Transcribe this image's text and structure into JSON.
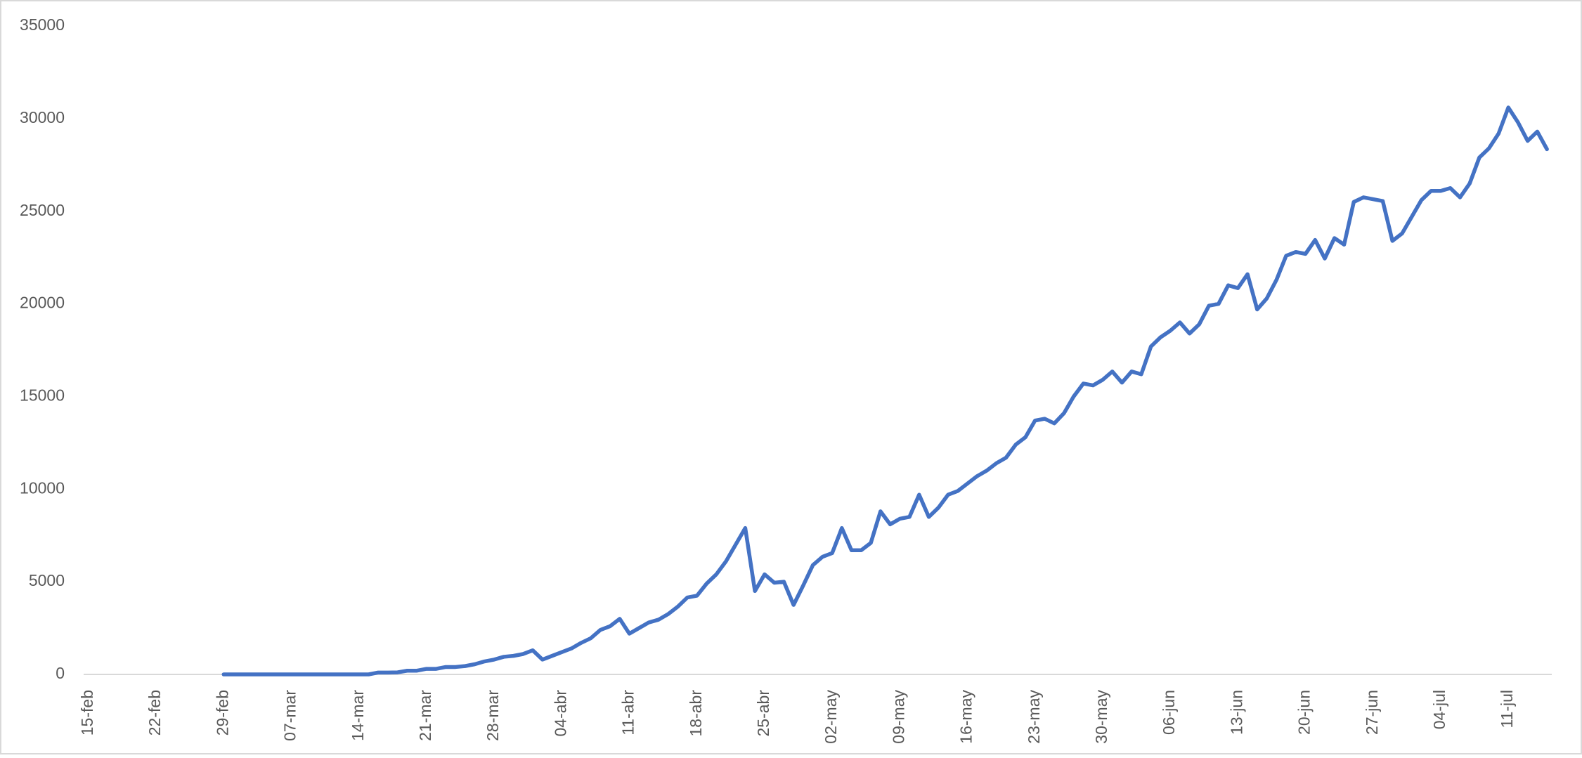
{
  "chart_data": {
    "type": "line",
    "categories": [
      "15-feb",
      null,
      null,
      null,
      null,
      null,
      null,
      "22-feb",
      null,
      null,
      null,
      null,
      null,
      null,
      "29-feb",
      null,
      null,
      null,
      null,
      null,
      null,
      "07-mar",
      null,
      null,
      null,
      null,
      null,
      null,
      "14-mar",
      null,
      null,
      null,
      null,
      null,
      null,
      "21-mar",
      null,
      null,
      null,
      null,
      null,
      null,
      "28-mar",
      null,
      null,
      null,
      null,
      null,
      null,
      "04-abr",
      null,
      null,
      null,
      null,
      null,
      null,
      "11-abr",
      null,
      null,
      null,
      null,
      null,
      null,
      "18-abr",
      null,
      null,
      null,
      null,
      null,
      null,
      "25-abr",
      null,
      null,
      null,
      null,
      null,
      null,
      "02-may",
      null,
      null,
      null,
      null,
      null,
      null,
      "09-may",
      null,
      null,
      null,
      null,
      null,
      null,
      "16-may",
      null,
      null,
      null,
      null,
      null,
      null,
      "23-may",
      null,
      null,
      null,
      null,
      null,
      null,
      "30-may",
      null,
      null,
      null,
      null,
      null,
      null,
      "06-jun",
      null,
      null,
      null,
      null,
      null,
      null,
      "13-jun",
      null,
      null,
      null,
      null,
      null,
      null,
      "20-jun",
      null,
      null,
      null,
      null,
      null,
      null,
      "27-jun",
      null,
      null,
      null,
      null,
      null,
      null,
      "04-jul",
      null,
      null,
      null,
      null,
      null,
      null,
      "11-jul",
      null,
      null,
      null,
      null
    ],
    "values": [
      null,
      null,
      null,
      null,
      null,
      null,
      null,
      null,
      null,
      null,
      null,
      null,
      null,
      null,
      0,
      0,
      0,
      0,
      0,
      0,
      0,
      0,
      0,
      0,
      0,
      0,
      0,
      0,
      0,
      0,
      100,
      100,
      110,
      200,
      200,
      300,
      300,
      400,
      400,
      450,
      550,
      700,
      800,
      950,
      1000,
      1100,
      1300,
      800,
      1000,
      1200,
      1400,
      1700,
      1950,
      2400,
      2600,
      3000,
      2200,
      2500,
      2800,
      2950,
      3250,
      3650,
      4150,
      4250,
      4900,
      5400,
      6100,
      7000,
      7900,
      4500,
      5400,
      4950,
      5000,
      3750,
      4800,
      5900,
      6350,
      6550,
      7900,
      6700,
      6700,
      7100,
      8800,
      8100,
      8400,
      8500,
      9700,
      8500,
      9000,
      9700,
      9900,
      10300,
      10700,
      11000,
      11400,
      11700,
      12400,
      12800,
      13700,
      13800,
      13550,
      14100,
      15000,
      15700,
      15600,
      15900,
      16350,
      15750,
      16350,
      16200,
      17700,
      18200,
      18550,
      19000,
      18400,
      18900,
      19900,
      20000,
      21000,
      20850,
      21600,
      19700,
      20300,
      21300,
      22600,
      22800,
      22700,
      23450,
      22450,
      23550,
      23200,
      25500,
      25750,
      25650,
      25550,
      23400,
      23800,
      24700,
      25600,
      26100,
      26100,
      26250,
      25750,
      26500,
      27900,
      28400,
      29200,
      30600,
      29800,
      28800,
      29300,
      28350
    ],
    "color": "#4472c4",
    "ylim": [
      0,
      35000
    ],
    "yticks": [
      0,
      5000,
      10000,
      15000,
      20000,
      25000,
      30000,
      35000
    ],
    "grid": false
  }
}
